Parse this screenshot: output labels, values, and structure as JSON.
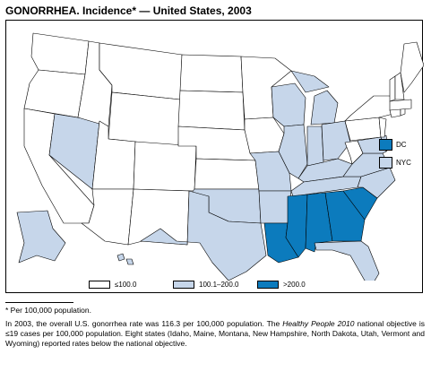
{
  "title": "GONORRHEA. Incidence* — United States, 2003",
  "colors": {
    "low": "#ffffff",
    "mid": "#c6d6ea",
    "high": "#0c7bbd",
    "border": "#000000"
  },
  "legend": [
    {
      "label": "≤100.0",
      "class": "low"
    },
    {
      "label": "100.1–200.0",
      "class": "mid"
    },
    {
      "label": ">200.0",
      "class": "high"
    }
  ],
  "insets": [
    {
      "label": "DC",
      "class": "high"
    },
    {
      "label": "NYC",
      "class": "mid"
    }
  ],
  "footnote": "* Per 100,000 population.",
  "description": {
    "part1": "In 2003, the overall U.S. gonorrhea rate was 116.3 per 100,000 population. The ",
    "italic": "Healthy People 2010",
    "part2": " national objective is ≤19 cases per 100,000 population. Eight states (Idaho, Maine, Montana, New Hampshire, North Dakota, Utah, Vermont and Wyoming) reported rates below the national objective."
  }
}
